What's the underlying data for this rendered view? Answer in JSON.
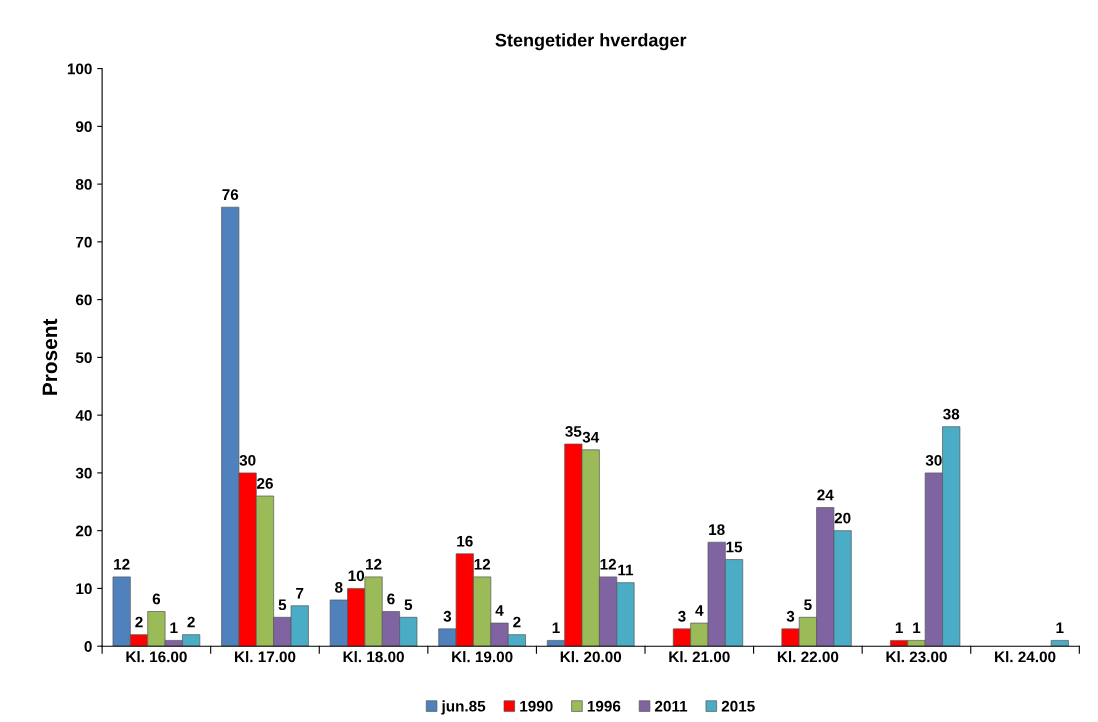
{
  "chart_data": {
    "type": "bar",
    "title": "Stengetider hverdager",
    "ylabel": "Prosent",
    "categories": [
      "Kl. 16.00",
      "Kl. 17.00",
      "Kl. 18.00",
      "Kl. 19.00",
      "Kl. 20.00",
      "Kl. 21.00",
      "Kl. 22.00",
      "Kl. 23.00",
      "Kl. 24.00"
    ],
    "series": [
      {
        "name": "jun.85",
        "color": "#4f81bd",
        "values": [
          12,
          76,
          8,
          3,
          1,
          null,
          null,
          null,
          null
        ]
      },
      {
        "name": "1990",
        "color": "#ff0000",
        "values": [
          2,
          30,
          10,
          16,
          35,
          3,
          3,
          1,
          null
        ]
      },
      {
        "name": "1996",
        "color": "#9bbb59",
        "values": [
          6,
          26,
          12,
          12,
          34,
          4,
          5,
          1,
          null
        ]
      },
      {
        "name": "2011",
        "color": "#8064a2",
        "values": [
          1,
          5,
          6,
          4,
          12,
          18,
          24,
          30,
          null
        ]
      },
      {
        "name": "2015",
        "color": "#4bacc6",
        "values": [
          2,
          7,
          5,
          2,
          11,
          15,
          20,
          38,
          1
        ]
      }
    ],
    "ylim": [
      0,
      100
    ],
    "yticks": [
      0,
      10,
      20,
      30,
      40,
      50,
      60,
      70,
      80,
      90,
      100
    ],
    "data_labels": true,
    "legend": "bottom",
    "grid": false
  }
}
